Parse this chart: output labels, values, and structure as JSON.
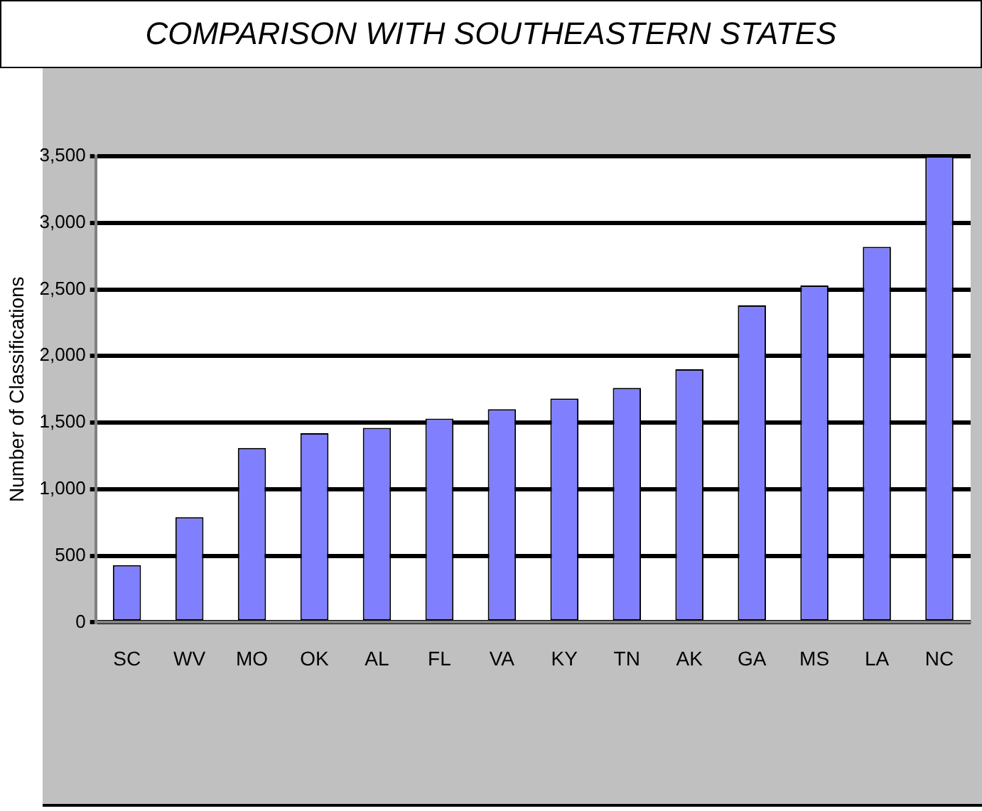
{
  "chart_data": {
    "type": "bar",
    "title": "COMPARISON WITH SOUTHEASTERN STATES",
    "ylabel": "Number of Classifications",
    "categories": [
      "SC",
      "WV",
      "MO",
      "OK",
      "AL",
      "FL",
      "VA",
      "KY",
      "TN",
      "AK",
      "GA",
      "MS",
      "LA",
      "NC"
    ],
    "values": [
      430,
      790,
      1310,
      1420,
      1460,
      1530,
      1600,
      1680,
      1760,
      1900,
      2380,
      2530,
      2820,
      3500
    ],
    "color": "#8080ff",
    "ylim": [
      0,
      3500
    ],
    "yticks": [
      0,
      500,
      {
        "value": 1000,
        "label": "1,000"
      },
      {
        "value": 1500,
        "label": "1,500"
      },
      {
        "value": 2000,
        "label": "2,000"
      },
      {
        "value": 2500,
        "label": "2,500"
      },
      {
        "value": 3000,
        "label": "3,000"
      },
      {
        "value": 3500,
        "label": "3,500"
      }
    ],
    "grid": "y"
  }
}
